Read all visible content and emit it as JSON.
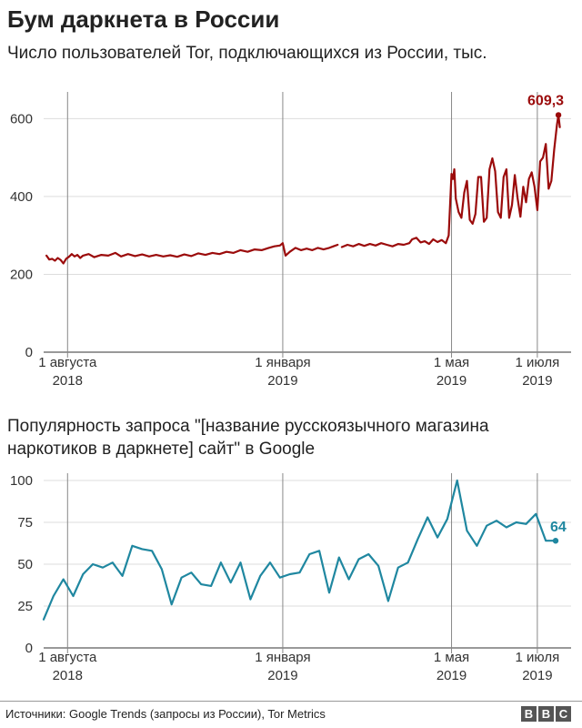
{
  "title": "Бум даркнета в России",
  "footer": "Источники: Google Trends (запросы из России), Tor Metrics",
  "logo": "BBC",
  "colors": {
    "tor": "#9b0b0b",
    "google": "#1f87a0",
    "grid": "#dddddd",
    "axis": "#333333"
  },
  "chart_data": [
    {
      "type": "line",
      "title": "Число пользователей Tor, подключающихся из России, тыс.",
      "ylim": [
        0,
        650
      ],
      "yticks": [
        0,
        200,
        400,
        600
      ],
      "xticks": [
        {
          "date": "2018-08-01",
          "line1": "1 августа",
          "line2": "2018"
        },
        {
          "date": "2019-01-01",
          "line1": "1 января",
          "line2": "2019"
        },
        {
          "date": "2019-05-01",
          "line1": "1 мая",
          "line2": "2019"
        },
        {
          "date": "2019-07-01",
          "line1": "1 июля",
          "line2": "2019"
        }
      ],
      "xlim": [
        "2018-07-15",
        "2019-07-25"
      ],
      "end_label": "609,3",
      "series": [
        {
          "points": [
            [
              "2018-07-17",
              248
            ],
            [
              "2018-07-19",
              238
            ],
            [
              "2018-07-21",
              240
            ],
            [
              "2018-07-23",
              235
            ],
            [
              "2018-07-25",
              242
            ],
            [
              "2018-07-27",
              237
            ],
            [
              "2018-07-29",
              228
            ],
            [
              "2018-07-31",
              240
            ],
            [
              "2018-08-02",
              245
            ],
            [
              "2018-08-04",
              252
            ],
            [
              "2018-08-06",
              246
            ],
            [
              "2018-08-08",
              250
            ],
            [
              "2018-08-10",
              242
            ],
            [
              "2018-08-12",
              248
            ],
            [
              "2018-08-16",
              252
            ],
            [
              "2018-08-20",
              244
            ],
            [
              "2018-08-25",
              250
            ],
            [
              "2018-08-30",
              248
            ],
            [
              "2018-09-04",
              255
            ],
            [
              "2018-09-08",
              246
            ],
            [
              "2018-09-13",
              252
            ],
            [
              "2018-09-18",
              247
            ],
            [
              "2018-09-23",
              251
            ],
            [
              "2018-09-28",
              246
            ],
            [
              "2018-10-03",
              250
            ],
            [
              "2018-10-08",
              246
            ],
            [
              "2018-10-13",
              249
            ],
            [
              "2018-10-18",
              245
            ],
            [
              "2018-10-23",
              251
            ],
            [
              "2018-10-28",
              247
            ],
            [
              "2018-11-02",
              254
            ],
            [
              "2018-11-07",
              250
            ],
            [
              "2018-11-12",
              255
            ],
            [
              "2018-11-17",
              252
            ],
            [
              "2018-11-22",
              258
            ],
            [
              "2018-11-27",
              255
            ],
            [
              "2018-12-02",
              262
            ],
            [
              "2018-12-07",
              258
            ],
            [
              "2018-12-12",
              264
            ],
            [
              "2018-12-17",
              262
            ],
            [
              "2018-12-22",
              268
            ],
            [
              "2018-12-26",
              272
            ],
            [
              "2018-12-30",
              274
            ],
            [
              "2019-01-01",
              280
            ],
            [
              "2019-01-03",
              248
            ],
            [
              "2019-01-06",
              258
            ],
            [
              "2019-01-10",
              268
            ],
            [
              "2019-01-14",
              262
            ],
            [
              "2019-01-18",
              266
            ],
            [
              "2019-01-22",
              262
            ],
            [
              "2019-01-26",
              268
            ],
            [
              "2019-01-30",
              264
            ],
            [
              "2019-02-03",
              268
            ],
            [
              "2019-02-06",
              272
            ],
            [
              "2019-02-09",
              276
            ],
            null,
            [
              "2019-02-12",
              270
            ],
            [
              "2019-02-16",
              276
            ],
            [
              "2019-02-20",
              272
            ],
            [
              "2019-02-24",
              278
            ],
            [
              "2019-02-28",
              273
            ],
            [
              "2019-03-04",
              278
            ],
            [
              "2019-03-08",
              274
            ],
            [
              "2019-03-12",
              280
            ],
            [
              "2019-03-16",
              276
            ],
            [
              "2019-03-20",
              272
            ],
            [
              "2019-03-24",
              278
            ],
            [
              "2019-03-28",
              276
            ],
            [
              "2019-04-01",
              280
            ],
            [
              "2019-04-03",
              290
            ],
            [
              "2019-04-06",
              294
            ],
            [
              "2019-04-09",
              282
            ],
            [
              "2019-04-12",
              285
            ],
            [
              "2019-04-15",
              278
            ],
            [
              "2019-04-18",
              290
            ],
            [
              "2019-04-21",
              283
            ],
            [
              "2019-04-24",
              288
            ],
            [
              "2019-04-27",
              280
            ],
            [
              "2019-04-29",
              300
            ],
            [
              "2019-05-01",
              458
            ],
            [
              "2019-05-02",
              445
            ],
            [
              "2019-05-03",
              470
            ],
            [
              "2019-05-04",
              395
            ],
            [
              "2019-05-06",
              360
            ],
            [
              "2019-05-08",
              345
            ],
            [
              "2019-05-10",
              410
            ],
            [
              "2019-05-12",
              440
            ],
            [
              "2019-05-14",
              340
            ],
            [
              "2019-05-16",
              330
            ],
            [
              "2019-05-18",
              355
            ],
            [
              "2019-05-20",
              450
            ],
            [
              "2019-05-22",
              450
            ],
            [
              "2019-05-24",
              335
            ],
            [
              "2019-05-26",
              345
            ],
            [
              "2019-05-28",
              470
            ],
            [
              "2019-05-30",
              498
            ],
            [
              "2019-06-01",
              465
            ],
            [
              "2019-06-03",
              360
            ],
            [
              "2019-06-05",
              345
            ],
            [
              "2019-06-07",
              450
            ],
            [
              "2019-06-09",
              470
            ],
            [
              "2019-06-11",
              345
            ],
            [
              "2019-06-13",
              378
            ],
            [
              "2019-06-15",
              455
            ],
            [
              "2019-06-17",
              395
            ],
            [
              "2019-06-19",
              348
            ],
            [
              "2019-06-21",
              425
            ],
            [
              "2019-06-23",
              385
            ],
            [
              "2019-06-25",
              445
            ],
            [
              "2019-06-27",
              462
            ],
            [
              "2019-06-29",
              425
            ],
            [
              "2019-07-01",
              365
            ],
            [
              "2019-07-03",
              490
            ],
            [
              "2019-07-05",
              500
            ],
            [
              "2019-07-07",
              535
            ],
            [
              "2019-07-09",
              420
            ],
            [
              "2019-07-11",
              440
            ],
            [
              "2019-07-13",
              520
            ],
            [
              "2019-07-15",
              585
            ],
            [
              "2019-07-16",
              609.3
            ],
            [
              "2019-07-17",
              578
            ]
          ]
        }
      ]
    },
    {
      "type": "line",
      "title": "Популярность запроса \"[название русскоязычного магазина наркотиков в даркнете] сайт\" в Google",
      "ylim": [
        0,
        100
      ],
      "yticks": [
        0,
        25,
        50,
        75,
        100
      ],
      "xticks": [
        {
          "date": "2018-08-01",
          "line1": "1 августа",
          "line2": "2018"
        },
        {
          "date": "2019-01-01",
          "line1": "1 января",
          "line2": "2019"
        },
        {
          "date": "2019-05-01",
          "line1": "1 мая",
          "line2": "2019"
        },
        {
          "date": "2019-07-01",
          "line1": "1 июля",
          "line2": "2019"
        }
      ],
      "xlim": [
        "2018-07-15",
        "2019-07-25"
      ],
      "end_label": "64",
      "series": [
        {
          "points": [
            [
              "2018-07-15",
              17
            ],
            [
              "2018-07-22",
              31
            ],
            [
              "2018-07-29",
              41
            ],
            [
              "2018-08-05",
              31
            ],
            [
              "2018-08-12",
              44
            ],
            [
              "2018-08-19",
              50
            ],
            [
              "2018-08-26",
              48
            ],
            [
              "2018-09-02",
              51
            ],
            [
              "2018-09-09",
              43
            ],
            [
              "2018-09-16",
              61
            ],
            [
              "2018-09-23",
              59
            ],
            [
              "2018-09-30",
              58
            ],
            [
              "2018-10-07",
              47
            ],
            [
              "2018-10-14",
              26
            ],
            [
              "2018-10-21",
              42
            ],
            [
              "2018-10-28",
              45
            ],
            [
              "2018-11-04",
              38
            ],
            [
              "2018-11-11",
              37
            ],
            [
              "2018-11-18",
              51
            ],
            [
              "2018-11-25",
              39
            ],
            [
              "2018-12-02",
              51
            ],
            [
              "2018-12-09",
              29
            ],
            [
              "2018-12-16",
              43
            ],
            [
              "2018-12-23",
              51
            ],
            [
              "2018-12-30",
              42
            ],
            [
              "2019-01-06",
              44
            ],
            [
              "2019-01-13",
              45
            ],
            [
              "2019-01-20",
              56
            ],
            [
              "2019-01-27",
              58
            ],
            [
              "2019-02-03",
              33
            ],
            [
              "2019-02-10",
              54
            ],
            [
              "2019-02-17",
              41
            ],
            [
              "2019-02-24",
              53
            ],
            [
              "2019-03-03",
              56
            ],
            [
              "2019-03-10",
              49
            ],
            [
              "2019-03-17",
              28
            ],
            [
              "2019-03-24",
              48
            ],
            [
              "2019-03-31",
              51
            ],
            [
              "2019-04-07",
              65
            ],
            [
              "2019-04-14",
              78
            ],
            [
              "2019-04-21",
              66
            ],
            [
              "2019-04-28",
              77
            ],
            [
              "2019-05-05",
              100
            ],
            [
              "2019-05-12",
              70
            ],
            [
              "2019-05-19",
              61
            ],
            [
              "2019-05-26",
              73
            ],
            [
              "2019-06-02",
              76
            ],
            [
              "2019-06-09",
              72
            ],
            [
              "2019-06-16",
              75
            ],
            [
              "2019-06-23",
              74
            ],
            [
              "2019-06-30",
              80
            ],
            [
              "2019-07-07",
              64
            ],
            [
              "2019-07-14",
              64
            ]
          ]
        }
      ]
    }
  ]
}
